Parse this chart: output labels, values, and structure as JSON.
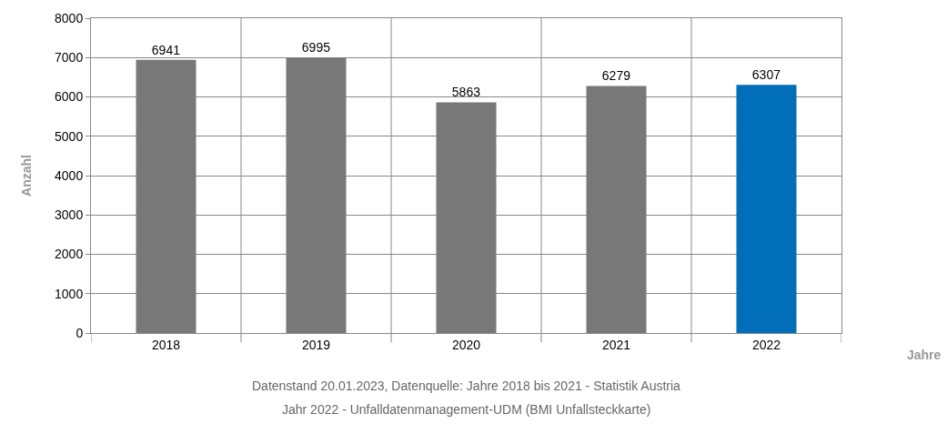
{
  "chart_data": {
    "type": "bar",
    "categories": [
      "2018",
      "2019",
      "2020",
      "2021",
      "2022"
    ],
    "values": [
      6941,
      6995,
      5863,
      6279,
      6307
    ],
    "colors": [
      "#787878",
      "#787878",
      "#787878",
      "#787878",
      "#006eb8"
    ],
    "ylim": [
      0,
      8000
    ],
    "yticks": [
      0,
      1000,
      2000,
      3000,
      4000,
      5000,
      6000,
      7000,
      8000
    ],
    "ylabel": "Anzahl",
    "grid": true,
    "data_labels": true,
    "annotations": [
      "Jahre",
      "Datenstand 20.01.2023, Datenquelle: Jahre 2018 bis 2021 - Statistik Austria",
      "Jahr 2022 - Unfalldatenmanagement-UDM (BMI Unfallsteckkarte)"
    ]
  }
}
